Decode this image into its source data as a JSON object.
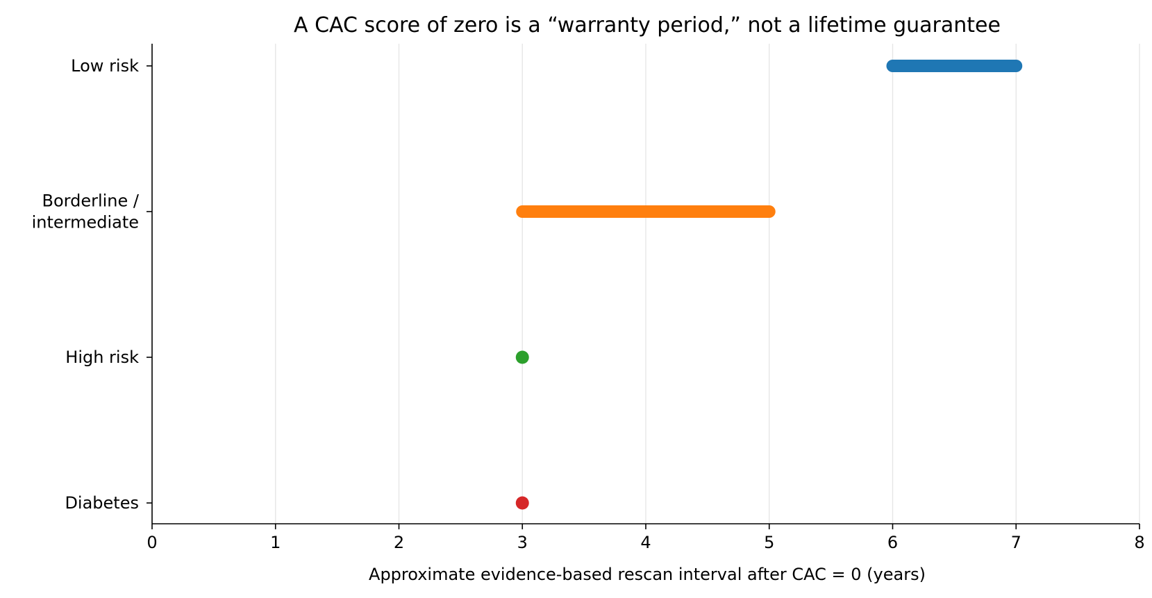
{
  "chart_data": {
    "type": "range",
    "title": "A CAC score of zero is a “warranty period,” not a lifetime guarantee",
    "xlabel": "Approximate evidence-based rescan interval after CAC = 0 (years)",
    "ylabel": "",
    "xlim": [
      0,
      8
    ],
    "xticks": [
      0,
      1,
      2,
      3,
      4,
      5,
      6,
      7,
      8
    ],
    "xgrid": true,
    "legend": "none",
    "categories": [
      [
        "Low risk"
      ],
      [
        "Borderline /",
        "intermediate"
      ],
      [
        "High risk"
      ],
      [
        "Diabetes"
      ]
    ],
    "ranges": [
      {
        "start": 6,
        "end": 7,
        "color": "#1f77b4"
      },
      {
        "start": 3,
        "end": 5,
        "color": "#ff7f0e"
      },
      {
        "start": 3,
        "end": 3,
        "color": "#2ca02c"
      },
      {
        "start": 3,
        "end": 3,
        "color": "#d62728"
      }
    ]
  }
}
